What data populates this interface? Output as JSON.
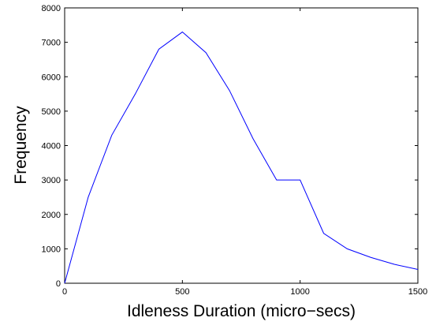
{
  "chart_data": {
    "type": "line",
    "title": "",
    "xlabel": "Idleness Duration (micro−secs)",
    "ylabel": "Frequency",
    "xlim": [
      0,
      1500
    ],
    "ylim": [
      0,
      8000
    ],
    "xticks": [
      0,
      500,
      1000,
      1500
    ],
    "yticks": [
      0,
      1000,
      2000,
      3000,
      4000,
      5000,
      6000,
      7000,
      8000
    ],
    "grid": false,
    "legend": "none",
    "series": [
      {
        "color": "#0000ff",
        "x": [
          0,
          100,
          200,
          300,
          400,
          500,
          600,
          700,
          800,
          900,
          1000,
          1100,
          1200,
          1300,
          1400,
          1500
        ],
        "y": [
          0,
          2500,
          4300,
          5500,
          6800,
          7300,
          6700,
          5600,
          4200,
          3000,
          3000,
          1450,
          1000,
          750,
          550,
          400
        ]
      }
    ]
  }
}
